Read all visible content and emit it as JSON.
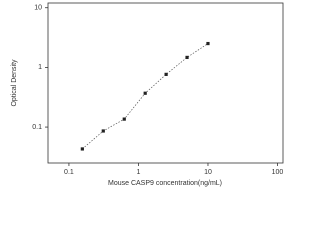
{
  "chart_data": {
    "type": "scatter",
    "xlabel": "Mouse CASP9 concentration(ng/mL)",
    "ylabel": "Optical Density",
    "x": [
      0.156,
      0.312,
      0.625,
      1.25,
      2.5,
      5,
      10
    ],
    "series": [
      {
        "color": "#222222",
        "values": [
          0.043,
          0.086,
          0.136,
          0.369,
          0.764,
          1.47,
          2.51
        ]
      }
    ],
    "xlim": [
      0.05,
      120
    ],
    "ylim": [
      0.025,
      12
    ],
    "xticks": [
      0.1,
      1,
      10,
      100
    ],
    "yticks": [
      0.1,
      1,
      10
    ],
    "xscale": "log",
    "yscale": "log",
    "fit_line": true
  }
}
